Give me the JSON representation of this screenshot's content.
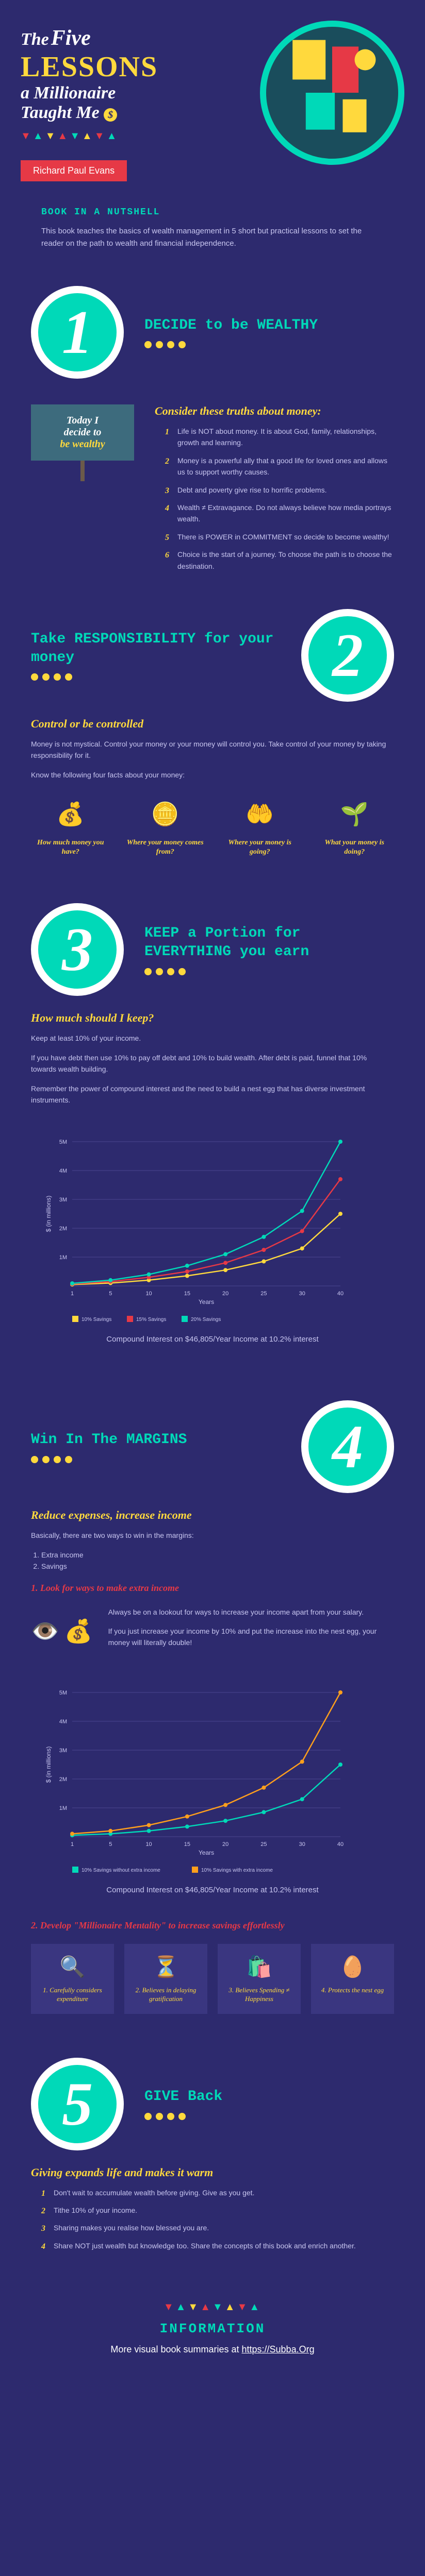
{
  "header": {
    "the": "The",
    "five": "Five",
    "lessons": "LESSONS",
    "amill": "a Millionaire",
    "taught": "Taught Me",
    "zigzag": "▼▲▼▲▼▲▼▲",
    "author": "Richard Paul Evans",
    "deco_colors": {
      "bg": "#1a4d5c",
      "ring": "#00d9b8",
      "accent1": "#ffd93d",
      "accent2": "#e63946"
    }
  },
  "nutshell": {
    "title": "BOOK IN A NUTSHELL",
    "text": "This book teaches the basics of wealth management in 5 short but practical lessons to set the reader on the path to wealth and financial independence."
  },
  "lesson1": {
    "num": "1",
    "title": "DECIDE to be WEALTHY",
    "subtitle": "Consider these truths about money:",
    "items": [
      "Life is NOT about money. It is about God, family, relationships, growth and learning.",
      "Money is a powerful ally that a good life for loved ones and allows us to support worthy causes.",
      "Debt and poverty give rise to horrific problems.",
      "Wealth ≠ Extravagance. Do not always believe how media portrays wealth.",
      "There is POWER in COMMITMENT so decide to become wealthy!",
      "Choice is the start of a journey. To choose the path is to choose the destination."
    ],
    "sign_l1": "Today I",
    "sign_l2": "decide to",
    "sign_l3": "be wealthy"
  },
  "lesson2": {
    "num": "2",
    "title": "Take RESPONSIBILITY for your money",
    "subtitle": "Control or be controlled",
    "text1": "Money is not mystical. Control your money or your money will control you. Take control of your money by taking responsibility for it.",
    "text2": "Know the following four facts about your money:",
    "facts": [
      {
        "icon": "💰",
        "label": "How much money you have?"
      },
      {
        "icon": "🪙",
        "label": "Where your money comes from?"
      },
      {
        "icon": "🤲",
        "label": "Where your money is going?"
      },
      {
        "icon": "🌱",
        "label": "What your money is doing?"
      }
    ]
  },
  "lesson3": {
    "num": "3",
    "title": "KEEP a Portion for EVERYTHING you earn",
    "subtitle": "How much should I keep?",
    "text1": "Keep at least 10% of your income.",
    "text2": "If you have debt then use 10% to pay off debt and 10% to build wealth. After debt is paid, funnel that 10% towards wealth building.",
    "text3": "Remember the power of compound interest and the need to build a nest egg that has diverse investment instruments.",
    "chart": {
      "type": "line",
      "xlabel": "Years",
      "ylabel": "$ (in millions)",
      "xticks": [
        1,
        5,
        10,
        15,
        20,
        25,
        30,
        40
      ],
      "yticks": [
        "1M",
        "2M",
        "3M",
        "4M",
        "5M"
      ],
      "ymax": 5,
      "series": [
        {
          "name": "10% Savings",
          "color": "#ffd93d",
          "values": [
            0.05,
            0.1,
            0.2,
            0.35,
            0.55,
            0.85,
            1.3,
            2.5
          ]
        },
        {
          "name": "15% Savings",
          "color": "#e63946",
          "values": [
            0.07,
            0.15,
            0.3,
            0.5,
            0.8,
            1.25,
            1.9,
            3.7
          ]
        },
        {
          "name": "20% Savings",
          "color": "#00d9b8",
          "values": [
            0.09,
            0.2,
            0.4,
            0.7,
            1.1,
            1.7,
            2.6,
            5.0
          ]
        }
      ],
      "caption": "Compound Interest on $46,805/Year Income at 10.2% interest"
    }
  },
  "lesson4": {
    "num": "4",
    "title": "Win In The MARGINS",
    "subtitle": "Reduce expenses, increase income",
    "text1": "Basically, there are two ways to win in the margins:",
    "ways": [
      "Extra income",
      "Savings"
    ],
    "sub1": "1. Look for ways to make extra income",
    "margin_text1": "Always be on a lookout for ways to increase your income apart from your salary.",
    "margin_text2": "If you just increase your income by 10% and put the increase into the nest egg, your money will literally double!",
    "chart": {
      "type": "line",
      "xlabel": "Years",
      "ylabel": "$ (in millions)",
      "xticks": [
        1,
        5,
        10,
        15,
        20,
        25,
        30,
        40
      ],
      "yticks": [
        "1M",
        "2M",
        "3M",
        "4M",
        "5M"
      ],
      "ymax": 5,
      "series": [
        {
          "name": "10% Savings without extra income",
          "color": "#00d9b8",
          "values": [
            0.05,
            0.1,
            0.2,
            0.35,
            0.55,
            0.85,
            1.3,
            2.5
          ]
        },
        {
          "name": "10% Savings with extra income",
          "color": "#ff9f1c",
          "values": [
            0.1,
            0.2,
            0.4,
            0.7,
            1.1,
            1.7,
            2.6,
            5.0
          ]
        }
      ],
      "caption": "Compound Interest on $46,805/Year Income at 10.2% interest"
    },
    "sub2": "2. Develop \"Millionaire Mentality\" to increase savings effortlessly",
    "mentality": [
      {
        "icon": "🔍",
        "text": "1. Carefully considers expenditure"
      },
      {
        "icon": "⏳",
        "text": "2. Believes in delaying gratification"
      },
      {
        "icon": "🛍️",
        "text": "3. Believes Spending ≠ Happiness"
      },
      {
        "icon": "🥚",
        "text": "4. Protects the nest egg"
      }
    ]
  },
  "lesson5": {
    "num": "5",
    "title": "GIVE Back",
    "subtitle": "Giving expands life and makes it warm",
    "items": [
      "Don't wait to accumulate wealth before giving. Give as you get.",
      "Tithe 10% of your income.",
      "Sharing makes you realise how blessed you are.",
      "Share NOT just wealth but knowledge too. Share the concepts of this book and enrich another."
    ]
  },
  "footer": {
    "title": "INFORMATION",
    "text": "More visual book summaries at ",
    "link": "https://Subba.Org",
    "zigzag": "▼▲▼▲▼▲▼▲"
  }
}
